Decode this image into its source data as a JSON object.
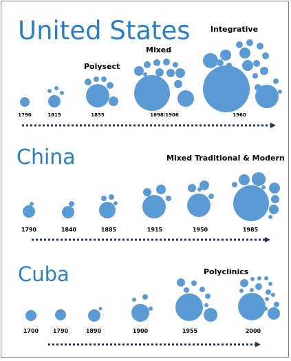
{
  "panels": [
    {
      "country": "United States",
      "stages": [
        "Polysect",
        "Mixed",
        "Integrative"
      ],
      "years": [
        "1790",
        "1815",
        "1855",
        "1898/1906",
        "1960"
      ]
    },
    {
      "country": "China",
      "stages": [
        "Mixed Traditional & Modern"
      ],
      "years": [
        "1790",
        "1840",
        "1885",
        "1915",
        "1950",
        "1985"
      ]
    },
    {
      "country": "Cuba",
      "stages": [
        "Polyclinics"
      ],
      "years": [
        "1700",
        "1790",
        "1890",
        "1900",
        "1955",
        "2000"
      ]
    }
  ],
  "colors": {
    "circle": "#5b9bd5",
    "country_title": "#2b7fc4",
    "arrow": "#1f3864"
  }
}
